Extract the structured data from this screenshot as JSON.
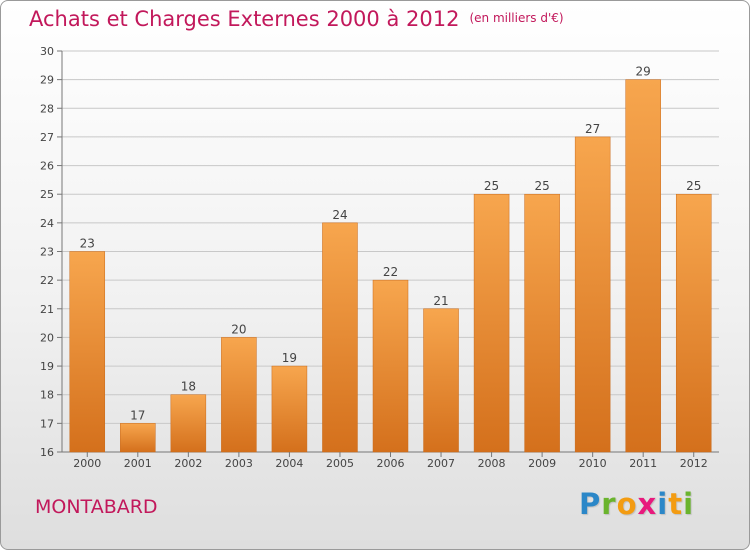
{
  "title": "Achats et Charges Externes 2000 à 2012",
  "unit_label": "(en milliers d'€)",
  "place_name": "MONTABARD",
  "brand": {
    "letters": [
      "P",
      "r",
      "o",
      "x",
      "i",
      "t",
      "i"
    ],
    "letter_colors": [
      "#2b87c8",
      "#6ab42d",
      "#f39c12",
      "#e8197d",
      "#2b87c8",
      "#f39c12",
      "#6ab42d"
    ]
  },
  "colors": {
    "bar_top": "#f7a64e",
    "bar_bottom": "#d4701c",
    "accent": "#c2185b",
    "grid": "#c8c8c8",
    "text": "#444444"
  },
  "chart_data": {
    "type": "bar",
    "title": "Achats et Charges Externes 2000 à 2012",
    "subtitle": "(en milliers d'€)",
    "xlabel": "",
    "ylabel": "",
    "categories": [
      "2000",
      "2001",
      "2002",
      "2003",
      "2004",
      "2005",
      "2006",
      "2007",
      "2008",
      "2009",
      "2010",
      "2011",
      "2012"
    ],
    "values": [
      23,
      17,
      18,
      20,
      19,
      24,
      22,
      21,
      25,
      25,
      27,
      29,
      25
    ],
    "ylim": [
      16,
      30
    ],
    "yticks": [
      16,
      17,
      18,
      19,
      20,
      21,
      22,
      23,
      24,
      25,
      26,
      27,
      28,
      29,
      30
    ],
    "grid": true,
    "data_labels": true,
    "legend": "none"
  }
}
